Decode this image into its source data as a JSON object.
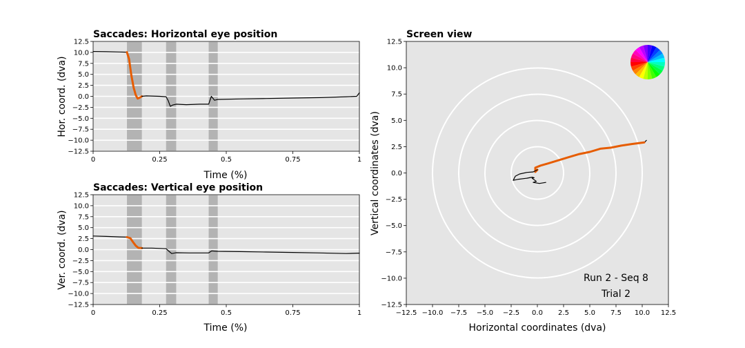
{
  "colors": {
    "background": "#e5e5e5",
    "saccade_span": "#b3b3b3",
    "trace": "#000000",
    "saccade_trace": "#e65c00",
    "grid": "#ffffff"
  },
  "chart_data": [
    {
      "id": "horizontal",
      "type": "line",
      "title": "Saccades: Horizontal eye position",
      "xlabel": "Time (%)",
      "ylabel": "Hor. coord. (dva)",
      "xlim": [
        0,
        1
      ],
      "ylim": [
        -12.5,
        12.5
      ],
      "xticks": [
        0,
        0.25,
        0.5,
        0.75,
        1
      ],
      "xtick_labels": [
        "0",
        "0.25",
        "0.5",
        "0.75",
        "1"
      ],
      "yticks": [
        12.5,
        10.0,
        7.5,
        5.0,
        2.5,
        0.0,
        -2.5,
        -5.0,
        -7.5,
        -10.0,
        -12.5
      ],
      "ytick_labels": [
        "12.5",
        "10.0",
        "7.5",
        "5.0",
        "2.5",
        "0.0",
        "−2.5",
        "−5.0",
        "−7.5",
        "−10.0",
        "−12.5"
      ],
      "grid": true,
      "saccade_spans": [
        [
          0.127,
          0.183
        ],
        [
          0.274,
          0.312
        ],
        [
          0.434,
          0.468
        ]
      ],
      "series": [
        {
          "role": "trace",
          "points": [
            [
              0,
              10.2
            ],
            [
              0.05,
              10.15
            ],
            [
              0.1,
              10.1
            ],
            [
              0.127,
              10.05
            ]
          ]
        },
        {
          "role": "saccade",
          "points": [
            [
              0.127,
              10.05
            ],
            [
              0.135,
              8.5
            ],
            [
              0.143,
              5.0
            ],
            [
              0.152,
              2.0
            ],
            [
              0.16,
              0.3
            ],
            [
              0.167,
              -0.5
            ],
            [
              0.175,
              -0.3
            ],
            [
              0.183,
              0.0
            ]
          ]
        },
        {
          "role": "trace",
          "points": [
            [
              0.183,
              0.0
            ],
            [
              0.2,
              0.1
            ],
            [
              0.25,
              0.0
            ],
            [
              0.274,
              -0.1
            ],
            [
              0.282,
              -1.0
            ],
            [
              0.29,
              -2.3
            ],
            [
              0.298,
              -2.0
            ],
            [
              0.312,
              -1.8
            ],
            [
              0.35,
              -1.9
            ],
            [
              0.4,
              -1.8
            ],
            [
              0.434,
              -1.8
            ],
            [
              0.444,
              0.0
            ],
            [
              0.456,
              -0.9
            ],
            [
              0.468,
              -0.7
            ],
            [
              0.55,
              -0.6
            ],
            [
              0.65,
              -0.5
            ],
            [
              0.75,
              -0.4
            ],
            [
              0.85,
              -0.3
            ],
            [
              0.95,
              -0.1
            ],
            [
              0.99,
              0.0
            ],
            [
              1.0,
              0.8
            ]
          ]
        }
      ]
    },
    {
      "id": "vertical",
      "type": "line",
      "title": "Saccades: Vertical eye position",
      "xlabel": "Time (%)",
      "ylabel": "Ver. coord. (dva)",
      "xlim": [
        0,
        1
      ],
      "ylim": [
        -12.5,
        12.5
      ],
      "xticks": [
        0,
        0.25,
        0.5,
        0.75,
        1
      ],
      "xtick_labels": [
        "0",
        "0.25",
        "0.5",
        "0.75",
        "1"
      ],
      "yticks": [
        12.5,
        10.0,
        7.5,
        5.0,
        2.5,
        0.0,
        -2.5,
        -5.0,
        -7.5,
        -10.0,
        -12.5
      ],
      "ytick_labels": [
        "12.5",
        "10.0",
        "7.5",
        "5.0",
        "2.5",
        "0.0",
        "−2.5",
        "−5.0",
        "−7.5",
        "−10.0",
        "−12.5"
      ],
      "grid": true,
      "saccade_spans": [
        [
          0.127,
          0.183
        ],
        [
          0.274,
          0.312
        ],
        [
          0.434,
          0.468
        ]
      ],
      "series": [
        {
          "role": "trace",
          "points": [
            [
              0,
              3.1
            ],
            [
              0.05,
              3.0
            ],
            [
              0.1,
              2.9
            ],
            [
              0.127,
              2.85
            ]
          ]
        },
        {
          "role": "saccade",
          "points": [
            [
              0.127,
              2.85
            ],
            [
              0.14,
              2.6
            ],
            [
              0.15,
              1.7
            ],
            [
              0.16,
              0.9
            ],
            [
              0.17,
              0.4
            ],
            [
              0.183,
              0.35
            ]
          ]
        },
        {
          "role": "trace",
          "points": [
            [
              0.183,
              0.35
            ],
            [
              0.22,
              0.35
            ],
            [
              0.274,
              0.2
            ],
            [
              0.285,
              -0.4
            ],
            [
              0.295,
              -0.9
            ],
            [
              0.312,
              -0.7
            ],
            [
              0.36,
              -0.75
            ],
            [
              0.434,
              -0.75
            ],
            [
              0.445,
              -0.3
            ],
            [
              0.468,
              -0.4
            ],
            [
              0.55,
              -0.45
            ],
            [
              0.65,
              -0.55
            ],
            [
              0.75,
              -0.65
            ],
            [
              0.85,
              -0.75
            ],
            [
              0.95,
              -0.9
            ],
            [
              1.0,
              -0.8
            ]
          ]
        }
      ]
    },
    {
      "id": "screen",
      "type": "line",
      "title": "Screen view",
      "xlabel": "Horizontal coordinates (dva)",
      "ylabel": "Vertical coordinates (dva)",
      "xlim": [
        -12.5,
        12.5
      ],
      "ylim": [
        -12.5,
        12.5
      ],
      "xticks": [
        -12.5,
        -10.0,
        -7.5,
        -5.0,
        -2.5,
        0.0,
        2.5,
        5.0,
        7.5,
        10.0,
        12.5
      ],
      "xtick_labels": [
        "−12.5",
        "−10.0",
        "−7.5",
        "−5.0",
        "−2.5",
        "0.0",
        "2.5",
        "5.0",
        "7.5",
        "10.0",
        "12.5"
      ],
      "yticks": [
        12.5,
        10.0,
        7.5,
        5.0,
        2.5,
        0.0,
        -2.5,
        -5.0,
        -7.5,
        -10.0,
        -12.5
      ],
      "ytick_labels": [
        "12.5",
        "10.0",
        "7.5",
        "5.0",
        "2.5",
        "0.0",
        "−2.5",
        "−5.0",
        "−7.5",
        "−10.0",
        "−12.5"
      ],
      "grid": false,
      "rings": [
        2.5,
        5.0,
        7.5,
        10.0
      ],
      "series": [
        {
          "role": "trace",
          "points": [
            [
              10.4,
              3.1
            ],
            [
              10.2,
              2.9
            ],
            [
              10.3,
              3.0
            ]
          ]
        },
        {
          "role": "saccade",
          "points": [
            [
              10.2,
              2.9
            ],
            [
              9.0,
              2.75
            ],
            [
              8.0,
              2.6
            ],
            [
              7.0,
              2.4
            ],
            [
              6.0,
              2.3
            ],
            [
              5.0,
              2.0
            ],
            [
              4.0,
              1.8
            ],
            [
              3.0,
              1.5
            ],
            [
              2.0,
              1.2
            ],
            [
              1.0,
              0.9
            ],
            [
              0.3,
              0.7
            ],
            [
              -0.2,
              0.5
            ],
            [
              -0.2,
              0.1
            ],
            [
              0.0,
              0.3
            ]
          ]
        },
        {
          "role": "trace",
          "points": [
            [
              0.0,
              0.3
            ],
            [
              -0.4,
              0.1
            ],
            [
              -1.0,
              0.05
            ],
            [
              -1.7,
              -0.1
            ],
            [
              -2.1,
              -0.3
            ],
            [
              -2.3,
              -0.7
            ],
            [
              -1.8,
              -0.6
            ],
            [
              -1.0,
              -0.5
            ],
            [
              -0.5,
              -0.4
            ],
            [
              -0.3,
              -0.45
            ],
            [
              -0.5,
              -0.5
            ],
            [
              -0.1,
              -0.8
            ],
            [
              -0.4,
              -0.9
            ],
            [
              0.2,
              -1.0
            ],
            [
              0.8,
              -0.9
            ]
          ]
        }
      ],
      "annotations": [
        "Run 2 - Seq 8",
        "Trial 2"
      ]
    }
  ]
}
